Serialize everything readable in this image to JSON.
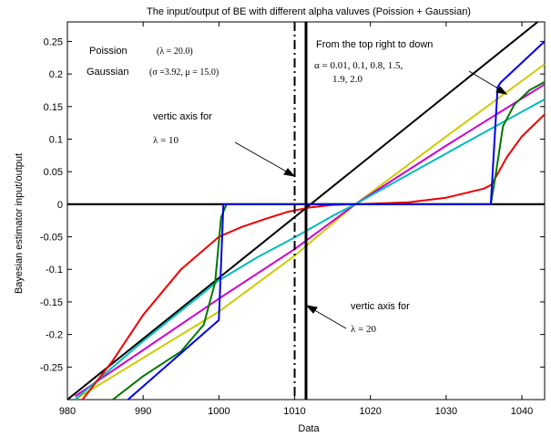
{
  "chart_data": {
    "type": "line",
    "title": "The input/output of BE with different alpha valuves (Poission + Gaussian)",
    "xlabel": "Data",
    "ylabel": "Bayesian estimator input/output",
    "xlim": [
      980,
      1043
    ],
    "ylim": [
      -0.3,
      0.28
    ],
    "xticks": [
      980,
      990,
      1000,
      1010,
      1020,
      1030,
      1040
    ],
    "yticks": [
      -0.25,
      -0.2,
      -0.15,
      -0.1,
      -0.05,
      0,
      0.05,
      0.1,
      0.15,
      0.2,
      0.25
    ],
    "grid": false,
    "series": [
      {
        "color": "#000000",
        "x": [
          980,
          1043
        ],
        "y": [
          -0.3,
          0.2885
        ]
      },
      {
        "color": "#cccc00",
        "x": [
          981,
          1000,
          1010,
          1018,
          1030,
          1043
        ],
        "y": [
          -0.3,
          -0.165,
          -0.079,
          0.0,
          0.104,
          0.215
        ]
      },
      {
        "color": "#cc00cc",
        "x": [
          981,
          1000,
          1010,
          1018,
          1030,
          1043
        ],
        "y": [
          -0.295,
          -0.145,
          -0.069,
          0.0,
          0.09,
          0.184
        ]
      },
      {
        "color": "#00bbbb",
        "x": [
          981,
          990,
          1000,
          1005,
          1010,
          1015,
          1018,
          1022,
          1026,
          1030,
          1035,
          1040,
          1043
        ],
        "y": [
          -0.3,
          -0.21,
          -0.117,
          -0.082,
          -0.051,
          -0.018,
          0.0,
          0.026,
          0.052,
          0.078,
          0.11,
          0.142,
          0.161
        ]
      },
      {
        "color": "#ee0000",
        "x": [
          982,
          986,
          990,
          995,
          1000,
          1003,
          1006,
          1009,
          1012,
          1015,
          1018,
          1025,
          1030,
          1035,
          1036,
          1038,
          1040,
          1043
        ],
        "y": [
          -0.3,
          -0.24,
          -0.17,
          -0.1,
          -0.05,
          -0.035,
          -0.023,
          -0.012,
          -0.005,
          -0.001,
          0.0,
          0.003,
          0.01,
          0.024,
          0.03,
          0.072,
          0.104,
          0.138
        ]
      },
      {
        "color": "#007700",
        "x": [
          986,
          990,
          995,
          998,
          999.5,
          1000.3,
          1001,
          1035.9,
          1036.6,
          1037.5,
          1039,
          1041,
          1043
        ],
        "y": [
          -0.3,
          -0.264,
          -0.226,
          -0.185,
          -0.12,
          -0.02,
          0.0,
          0.0,
          0.05,
          0.12,
          0.153,
          0.175,
          0.188
        ]
      },
      {
        "color": "#0000ee",
        "x": [
          988,
          1000,
          1000.6,
          1035.9,
          1036.8,
          1037.2,
          1043
        ],
        "y": [
          -0.3,
          -0.178,
          0.0,
          0.0,
          0.18,
          0.187,
          0.25
        ]
      }
    ],
    "vlines": [
      {
        "x": 1010,
        "style": "dashdot"
      },
      {
        "x": 1011.5,
        "style": "solid"
      }
    ],
    "annotations": {
      "poission_label": "Poission",
      "poission_param": "(λ = 20.0)",
      "gaussian_label": "Gaussian",
      "gaussian_param": "(σ =3.92, μ = 15.0)",
      "order_note": "From the top right to down",
      "alpha_line1": "α = 0.01, 0.1, 0.8, 1.5,",
      "alpha_line2": "1.9, 2.0",
      "vertic_label_1": "vertic axis for",
      "lambda_10": "λ = 10",
      "vertic_label_2": "vertic axis for",
      "lambda_20": "λ = 20"
    }
  }
}
